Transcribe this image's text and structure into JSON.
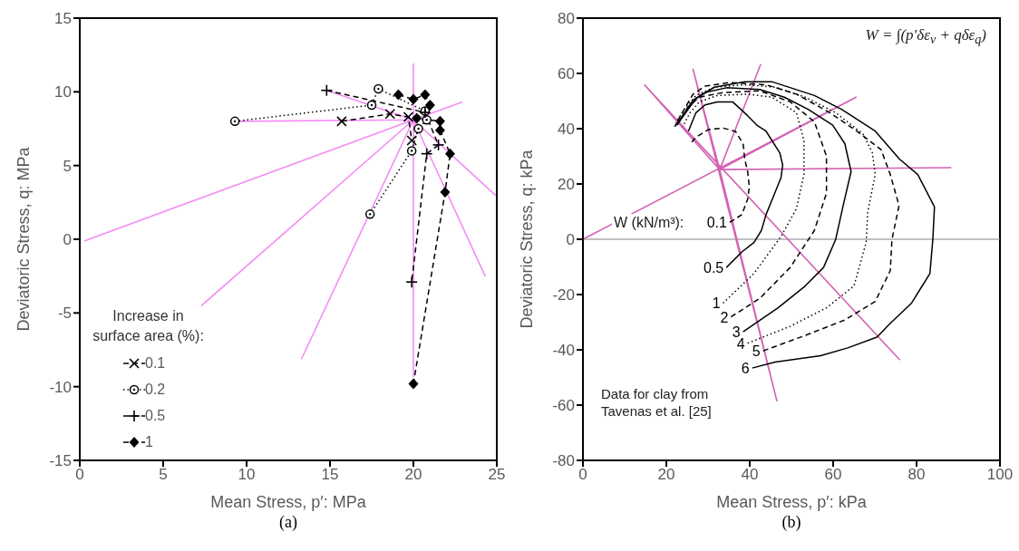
{
  "chart_data": [
    {
      "type": "line",
      "title": "(a)",
      "xlabel": "Mean Stress, p′: MPa",
      "ylabel": "Deviatoric Stress, q: MPa",
      "legend_title": "Increase in surface area (%):",
      "legend": "bottom left",
      "xlim": [
        0,
        25
      ],
      "xticks": [
        0,
        5,
        10,
        15,
        20,
        25
      ],
      "ylim": [
        -15,
        15
      ],
      "yticks": [
        -15,
        -10,
        -5,
        0,
        5,
        10,
        15
      ],
      "series": [
        {
          "type": "line",
          "color": "#f48cf4",
          "marker": "none",
          "line_style": "solid",
          "x": [
            20,
            20,
            20,
            22.9,
            20,
            24.9,
            20,
            24.3,
            20,
            20,
            20,
            13.3,
            20,
            7.3,
            20,
            0.3,
            20,
            9.3,
            20,
            14.8
          ],
          "values": [
            8.1,
            11.9,
            8.1,
            9.3,
            8.1,
            3.0,
            8.1,
            -2.5,
            8.1,
            -9.3,
            8.1,
            -8.1,
            8.1,
            -4.5,
            8.1,
            -0.1,
            8.1,
            8.0,
            8.1,
            10.1
          ]
        },
        {
          "name": "0.1",
          "color": "#000000",
          "marker": "cross",
          "line_style": "dashed",
          "x": [
            15.7,
            18.6,
            19.7,
            19.9
          ],
          "values": [
            8.0,
            8.5,
            8.3,
            6.7
          ]
        },
        {
          "name": "0.2",
          "color": "#000000",
          "marker": "circle",
          "line_style": "dotted",
          "x": [
            9.3,
            17.5,
            17.9,
            20.7,
            20.8,
            20.3,
            19.9,
            17.4
          ],
          "values": [
            8.0,
            9.1,
            10.2,
            8.7,
            8.1,
            7.5,
            6.0,
            1.7
          ]
        },
        {
          "name": "0.5",
          "color": "#000000",
          "marker": "plus",
          "line_style": "dashed",
          "x": [
            14.8,
            20.7,
            21.5,
            20.8,
            19.9
          ],
          "values": [
            10.1,
            8.6,
            6.4,
            5.8,
            -2.9
          ]
        },
        {
          "name": "1",
          "color": "#000000",
          "marker": "diamond",
          "line_style": "dashed",
          "x": [
            19.1,
            20.0,
            20.7,
            21.0,
            20.2,
            21.6,
            21.6,
            22.2,
            21.9,
            20.0
          ],
          "values": [
            9.8,
            9.5,
            9.8,
            9.1,
            8.2,
            8.0,
            7.4,
            5.8,
            3.2,
            -9.8
          ]
        }
      ]
    },
    {
      "type": "line",
      "title": "(b)",
      "xlabel": "Mean Stress, p′: kPa",
      "ylabel": "Deviatoric Stress, q: kPa",
      "xlim": [
        0,
        100
      ],
      "xticks": [
        0,
        20,
        40,
        60,
        80,
        100
      ],
      "ylim": [
        -80,
        80
      ],
      "yticks": [
        -80,
        -60,
        -40,
        -20,
        0,
        20,
        40,
        60,
        80
      ],
      "annotations": [
        "W = ∫(p′δε$_{v}$ + qδε$_{q}$)",
        "W (kN/m³):",
        "Data for clay from Tavenas et al. [25]"
      ],
      "ref_lines": [
        {
          "axis": "y",
          "value": 0,
          "color": "#808080"
        }
      ],
      "series": [
        {
          "type": "line",
          "color": "#d462b4",
          "marker": "none",
          "line_style": "solid",
          "x": [
            0,
            65.5,
            32.8,
            88.2,
            32.8,
            42.6,
            32.8,
            26.4,
            46.5,
            32.8,
            14.8,
            76.0
          ],
          "values": [
            0,
            51.4,
            25.2,
            25.9,
            25.2,
            63.2,
            25.2,
            61.5,
            -58.5,
            25.2,
            55.8,
            -43.7
          ]
        },
        {
          "name": "0.1",
          "color": "#000000",
          "marker": "none",
          "line_style": "dashed",
          "x": [
            35.2,
            38.1,
            39.5,
            39.9,
            39.5,
            38.8,
            38.4,
            36.6,
            33.7,
            30.1,
            27.1,
            26.1
          ],
          "values": [
            6.1,
            8.9,
            14.5,
            18.9,
            24.5,
            29.0,
            34.6,
            39.0,
            40.2,
            39.7,
            36.9,
            35.2
          ]
        },
        {
          "name": "0.5",
          "color": "#000000",
          "marker": "none",
          "line_style": "solid",
          "x": [
            34.4,
            38.1,
            41.0,
            42.8,
            43.9,
            45.7,
            47.5,
            47.9,
            47.2,
            43.9,
            41.7,
            39.5,
            35.9,
            32.2,
            29.3,
            27.1,
            25.3
          ],
          "values": [
            -10.2,
            -4.6,
            -1.2,
            3.2,
            8.9,
            15.6,
            22.3,
            26.8,
            31.3,
            39.1,
            41.3,
            44.7,
            49.7,
            49.7,
            48.6,
            45.8,
            39.1
          ]
        },
        {
          "name": "1",
          "color": "#000000",
          "marker": "none",
          "line_style": "dotted",
          "x": [
            33.6,
            41.0,
            47.5,
            51.2,
            53.0,
            53.0,
            51.2,
            45.3,
            39.5,
            32.2,
            27.9,
            25.7,
            23.9
          ],
          "values": [
            -23.1,
            -12.4,
            1.0,
            11.1,
            23.4,
            35.7,
            45.8,
            51.4,
            52.5,
            52.0,
            49.7,
            45.8,
            40.8
          ]
        },
        {
          "name": "2",
          "color": "#000000",
          "marker": "none",
          "line_style": "dashed",
          "x": [
            35.5,
            42.4,
            49.7,
            55.5,
            58.4,
            58.4,
            55.5,
            49.7,
            42.4,
            33.7,
            27.9,
            25.0,
            22.4
          ],
          "values": [
            -28.1,
            -21.4,
            -10.2,
            3.2,
            16.7,
            30.1,
            42.5,
            49.7,
            53.7,
            53.1,
            51.4,
            47.5,
            40.8
          ]
        },
        {
          "name": "3",
          "color": "#000000",
          "marker": "none",
          "line_style": "solid",
          "x": [
            38.4,
            46.8,
            53.3,
            57.7,
            60.6,
            62.4,
            64.3,
            62.8,
            59.9,
            54.1,
            48.3,
            42.4,
            34.4,
            29.3,
            26.4,
            22.1
          ],
          "values": [
            -33.5,
            -24.8,
            -16.9,
            -10.2,
            -0.1,
            12.2,
            24.5,
            34.6,
            41.3,
            46.9,
            51.4,
            54.2,
            54.8,
            53.1,
            50.3,
            40.8
          ]
        },
        {
          "name": "4",
          "color": "#000000",
          "marker": "none",
          "line_style": "dotted",
          "x": [
            39.5,
            49.7,
            58.4,
            65.0,
            67.9,
            68.3,
            70.1,
            69.4,
            67.2,
            60.6,
            53.3,
            46.1,
            38.8,
            31.5,
            27.1,
            24.2,
            21.9
          ],
          "values": [
            -37.6,
            -31.5,
            -24.8,
            -16.9,
            -1.2,
            10.0,
            23.4,
            31.3,
            38.0,
            45.8,
            51.4,
            55.0,
            55.9,
            55.0,
            52.0,
            46.9,
            40.8
          ]
        },
        {
          "name": "5",
          "color": "#000000",
          "marker": "none",
          "line_style": "dashed",
          "x": [
            43.2,
            53.3,
            62.8,
            70.1,
            73.7,
            74.1,
            75.8,
            73.7,
            71.5,
            65.7,
            59.2,
            51.2,
            43.9,
            35.2,
            29.3,
            26.4,
            22.1
          ],
          "values": [
            -40.4,
            -34.8,
            -29.2,
            -22.5,
            -11.3,
            -0.1,
            12.2,
            23.4,
            32.4,
            39.1,
            45.8,
            52.5,
            55.9,
            56.7,
            55.4,
            52.5,
            41.3
          ]
        },
        {
          "name": "6",
          "color": "#000000",
          "marker": "none",
          "line_style": "solid",
          "x": [
            40.6,
            46.1,
            57.0,
            63.5,
            70.5,
            73.7,
            78.8,
            83.2,
            83.9,
            84.3,
            80.3,
            75.9,
            70.1,
            62.1,
            55.5,
            45.3,
            38.8,
            31.5,
            27.1,
            22.8
          ],
          "values": [
            -46.6,
            -44.4,
            -42.1,
            -39.3,
            -35.4,
            -30.4,
            -23.1,
            -12.4,
            -0.1,
            11.7,
            23.4,
            29.0,
            39.1,
            46.9,
            52.0,
            57.0,
            57.0,
            55.0,
            50.9,
            41.9
          ]
        }
      ]
    }
  ]
}
